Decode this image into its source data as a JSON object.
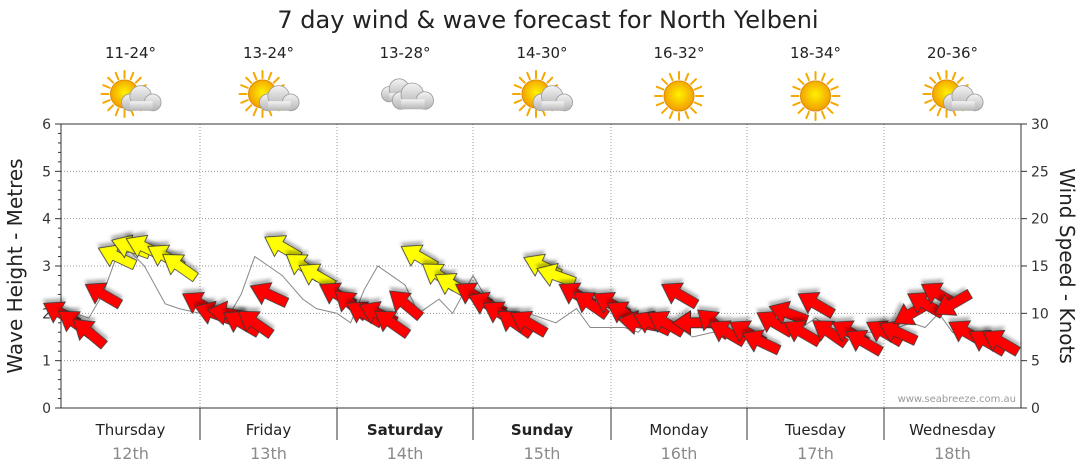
{
  "chart_data": {
    "type": "line",
    "title": "7 day wind & wave forecast for North Yelbeni",
    "ylabel": "Wave Height - Metres",
    "y2label": "Wind Speed - Knots",
    "ylim": [
      0,
      6
    ],
    "y2lim": [
      0,
      30
    ],
    "yticks": [
      "0",
      "1",
      "2",
      "3",
      "4",
      "5",
      "6"
    ],
    "y2ticks": [
      "0",
      "5",
      "10",
      "15",
      "20",
      "25",
      "30"
    ],
    "grid": true,
    "credit": "www.seabreeze.com.au",
    "days": [
      {
        "name": "Thursday",
        "date": "12th",
        "temp": "11-24°",
        "weather": "partly-cloudy-icon",
        "bold": false
      },
      {
        "name": "Friday",
        "date": "13th",
        "temp": "13-24°",
        "weather": "partly-cloudy-icon",
        "bold": false
      },
      {
        "name": "Saturday",
        "date": "14th",
        "temp": "13-28°",
        "weather": "cloudy-icon",
        "bold": true
      },
      {
        "name": "Sunday",
        "date": "15th",
        "temp": "14-30°",
        "weather": "partly-cloudy-icon",
        "bold": true
      },
      {
        "name": "Monday",
        "date": "16th",
        "temp": "16-32°",
        "weather": "sunny-icon",
        "bold": false
      },
      {
        "name": "Tuesday",
        "date": "17th",
        "temp": "18-34°",
        "weather": "sunny-icon",
        "bold": false
      },
      {
        "name": "Wednesday",
        "date": "18th",
        "temp": "20-36°",
        "weather": "partly-cloudy-icon",
        "bold": false
      }
    ],
    "colors": {
      "light_wind": "#ffff00",
      "strong_wind": "#ff0000",
      "outline": "#333333",
      "sun": "#f5a800",
      "cloud": "#c8c8c8"
    },
    "series": [
      {
        "name": "",
        "x": [
          0.0,
          0.1,
          0.2,
          0.3,
          0.4,
          0.5,
          0.6,
          0.75,
          0.85,
          1.0,
          1.1,
          1.2,
          1.3,
          1.4,
          1.5,
          1.6,
          1.75,
          1.85,
          2.0,
          2.1,
          2.2,
          2.3,
          2.4,
          2.5,
          2.6,
          2.75,
          2.85,
          3.0,
          3.1,
          3.2,
          3.3,
          3.4,
          3.5,
          3.6,
          3.75,
          3.85,
          4.0,
          4.1,
          4.2,
          4.3,
          4.4,
          4.5,
          4.6,
          4.75,
          4.85,
          5.0,
          5.1,
          5.2,
          5.3,
          5.4,
          5.5,
          5.6,
          5.75,
          5.85,
          6.0,
          6.1,
          6.2,
          6.3,
          6.4,
          6.5,
          6.6,
          6.75,
          6.85
        ],
        "knots": [
          10,
          9,
          8,
          12,
          16,
          17,
          17,
          16,
          15,
          11,
          10,
          10,
          9,
          9,
          12,
          17,
          15,
          14,
          12,
          11,
          10,
          10,
          9,
          11,
          16,
          14,
          13,
          12,
          11,
          10,
          9,
          9,
          15,
          14,
          12,
          11,
          11,
          10,
          9,
          9,
          9,
          12,
          9,
          9,
          8,
          8,
          7,
          9,
          10,
          8,
          11,
          8,
          8,
          7,
          8,
          8,
          10,
          11,
          12,
          11,
          8,
          7,
          7
        ],
        "direction_deg": [
          300,
          305,
          310,
          300,
          295,
          290,
          295,
          300,
          305,
          300,
          290,
          280,
          300,
          305,
          295,
          300,
          305,
          300,
          300,
          310,
          300,
          295,
          305,
          310,
          300,
          305,
          300,
          300,
          295,
          300,
          305,
          300,
          295,
          290,
          300,
          305,
          300,
          300,
          280,
          295,
          300,
          300,
          270,
          310,
          300,
          300,
          295,
          300,
          290,
          300,
          300,
          305,
          300,
          300,
          300,
          295,
          240,
          300,
          300,
          240,
          300,
          300,
          300
        ],
        "wave_m": [
          2.1,
          2.0,
          1.9,
          2.4,
          3.2,
          3.3,
          3.0,
          2.2,
          2.1,
          2.0,
          2.1,
          1.9,
          2.4,
          3.2,
          3.0,
          2.8,
          2.3,
          2.1,
          2.0,
          1.8,
          2.5,
          3.0,
          2.8,
          2.6,
          2.0,
          2.3,
          2.0,
          2.8,
          2.3,
          2.1,
          2.0,
          2.0,
          1.9,
          1.8,
          2.1,
          1.7,
          1.7,
          1.7,
          1.6,
          1.9,
          1.8,
          1.7,
          1.5,
          1.6,
          1.6,
          1.6,
          1.6,
          1.8,
          2.0,
          1.7,
          1.9,
          1.7,
          1.6,
          1.6,
          1.6,
          1.7,
          1.8,
          1.7,
          2.0,
          1.6,
          1.5,
          1.5,
          1.4
        ]
      }
    ]
  }
}
